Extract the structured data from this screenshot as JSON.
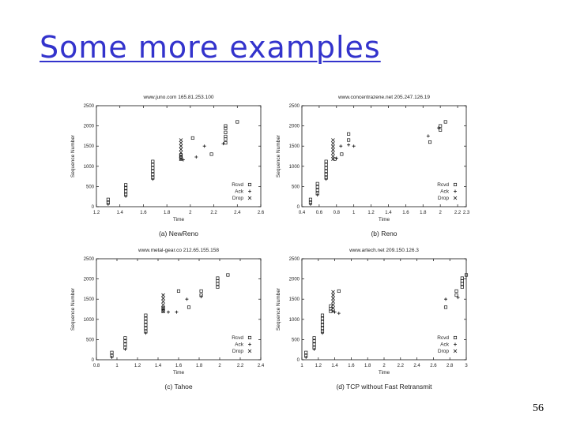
{
  "slide": {
    "title": "Some more examples",
    "page_number": "56"
  },
  "chart_data": [
    {
      "type": "scatter",
      "title": "www.juno.com 165.81.253.100",
      "xlabel": "Time",
      "ylabel": "Sequence Number",
      "caption": "(a) NewReno",
      "xlim": [
        1.2,
        2.6
      ],
      "ylim": [
        0,
        2500
      ],
      "xticks": [
        "1.2",
        "1.4",
        "1.6",
        "1.8",
        "2",
        "2.2",
        "2.4",
        "2.6"
      ],
      "yticks": [
        "0",
        "500",
        "1000",
        "1500",
        "2000",
        "2500"
      ],
      "legend": {
        "placement": "bottom-right",
        "entries": [
          "Rcvd",
          "Ack",
          "Drop"
        ]
      },
      "series": [
        {
          "name": "Rcvd",
          "points": [
            [
              1.3,
              100
            ],
            [
              1.3,
              180
            ],
            [
              1.45,
              300
            ],
            [
              1.45,
              380
            ],
            [
              1.45,
              460
            ],
            [
              1.45,
              540
            ],
            [
              1.68,
              720
            ],
            [
              1.68,
              800
            ],
            [
              1.68,
              880
            ],
            [
              1.68,
              960
            ],
            [
              1.68,
              1040
            ],
            [
              1.68,
              1120
            ],
            [
              1.92,
              1180
            ],
            [
              1.92,
              1230
            ],
            [
              1.92,
              1280
            ],
            [
              2.02,
              1700
            ],
            [
              2.18,
              1300
            ],
            [
              2.3,
              1580
            ],
            [
              2.3,
              1670
            ],
            [
              2.3,
              1740
            ],
            [
              2.3,
              1840
            ],
            [
              2.3,
              1940
            ],
            [
              2.3,
              2000
            ],
            [
              2.4,
              2100
            ]
          ]
        },
        {
          "name": "Ack",
          "points": [
            [
              1.3,
              60
            ],
            [
              1.45,
              260
            ],
            [
              1.68,
              680
            ],
            [
              1.94,
              1160
            ],
            [
              2.05,
              1230
            ],
            [
              2.12,
              1500
            ],
            [
              2.28,
              1560
            ]
          ]
        },
        {
          "name": "Drop",
          "points": [
            [
              1.92,
              1180
            ],
            [
              1.92,
              1260
            ],
            [
              1.92,
              1340
            ],
            [
              1.92,
              1420
            ],
            [
              1.92,
              1500
            ],
            [
              1.92,
              1580
            ],
            [
              1.92,
              1650
            ]
          ]
        }
      ]
    },
    {
      "type": "scatter",
      "title": "www.concentrazene.net 205.247.126.19",
      "xlabel": "Time",
      "ylabel": "Sequence Number",
      "caption": "(b) Reno",
      "xlim": [
        0.4,
        2.3
      ],
      "ylim": [
        0,
        2500
      ],
      "xticks": [
        "0.4",
        "0.6",
        "0.8",
        "1",
        "1.2",
        "1.4",
        "1.6",
        "1.8",
        "2",
        "2.2",
        "2.3"
      ],
      "yticks": [
        "0",
        "500",
        "1000",
        "1500",
        "2000",
        "2500"
      ],
      "legend": {
        "placement": "bottom-right",
        "entries": [
          "Rcvd",
          "Ack",
          "Drop"
        ]
      },
      "series": [
        {
          "name": "Rcvd",
          "points": [
            [
              0.5,
              100
            ],
            [
              0.5,
              180
            ],
            [
              0.58,
              330
            ],
            [
              0.58,
              410
            ],
            [
              0.58,
              490
            ],
            [
              0.58,
              570
            ],
            [
              0.68,
              720
            ],
            [
              0.68,
              800
            ],
            [
              0.68,
              880
            ],
            [
              0.68,
              960
            ],
            [
              0.68,
              1040
            ],
            [
              0.68,
              1120
            ],
            [
              0.78,
              1180
            ],
            [
              0.86,
              1300
            ],
            [
              0.94,
              1650
            ],
            [
              0.94,
              1800
            ],
            [
              1.88,
              1600
            ],
            [
              2.0,
              1900
            ],
            [
              2.0,
              2000
            ],
            [
              2.06,
              2100
            ]
          ]
        },
        {
          "name": "Ack",
          "points": [
            [
              0.5,
              60
            ],
            [
              0.58,
              290
            ],
            [
              0.68,
              680
            ],
            [
              0.8,
              1200
            ],
            [
              0.85,
              1500
            ],
            [
              0.94,
              1530
            ],
            [
              1.0,
              1500
            ],
            [
              1.86,
              1750
            ],
            [
              1.98,
              1950
            ]
          ]
        },
        {
          "name": "Drop",
          "points": [
            [
              0.76,
              1180
            ],
            [
              0.76,
              1250
            ],
            [
              0.76,
              1330
            ],
            [
              0.76,
              1410
            ],
            [
              0.76,
              1490
            ],
            [
              0.76,
              1570
            ],
            [
              0.76,
              1650
            ]
          ]
        }
      ]
    },
    {
      "type": "scatter",
      "title": "www.metal-gear.co 212.65.155.158",
      "xlabel": "Time",
      "ylabel": "Sequence Number",
      "caption": "(c) Tahoe",
      "xlim": [
        0.8,
        2.4
      ],
      "ylim": [
        0,
        2500
      ],
      "xticks": [
        "0.8",
        "1",
        "1.2",
        "1.4",
        "1.6",
        "1.8",
        "2",
        "2.2",
        "2.4"
      ],
      "yticks": [
        "0",
        "500",
        "1000",
        "1500",
        "2000",
        "2500"
      ],
      "legend": {
        "placement": "bottom-right",
        "entries": [
          "Rcvd",
          "Ack",
          "Drop"
        ]
      },
      "series": [
        {
          "name": "Rcvd",
          "points": [
            [
              0.95,
              100
            ],
            [
              0.95,
              180
            ],
            [
              1.08,
              300
            ],
            [
              1.08,
              380
            ],
            [
              1.08,
              460
            ],
            [
              1.08,
              540
            ],
            [
              1.28,
              700
            ],
            [
              1.28,
              780
            ],
            [
              1.28,
              860
            ],
            [
              1.28,
              940
            ],
            [
              1.28,
              1020
            ],
            [
              1.28,
              1100
            ],
            [
              1.45,
              1200
            ],
            [
              1.45,
              1280
            ],
            [
              1.6,
              1700
            ],
            [
              1.7,
              1300
            ],
            [
              1.82,
              1600
            ],
            [
              1.82,
              1700
            ],
            [
              1.98,
              1800
            ],
            [
              1.98,
              1880
            ],
            [
              1.98,
              1950
            ],
            [
              1.98,
              2020
            ],
            [
              2.08,
              2100
            ]
          ]
        },
        {
          "name": "Ack",
          "points": [
            [
              0.95,
              60
            ],
            [
              1.08,
              260
            ],
            [
              1.28,
              660
            ],
            [
              1.5,
              1180
            ],
            [
              1.58,
              1180
            ],
            [
              1.68,
              1500
            ],
            [
              1.82,
              1560
            ]
          ]
        },
        {
          "name": "Drop",
          "points": [
            [
              1.45,
              1200
            ],
            [
              1.45,
              1280
            ],
            [
              1.45,
              1360
            ],
            [
              1.45,
              1440
            ],
            [
              1.45,
              1520
            ],
            [
              1.45,
              1600
            ]
          ]
        }
      ]
    },
    {
      "type": "scatter",
      "title": "www.artech.net 209.150.126.3",
      "xlabel": "Time",
      "ylabel": "Sequence Number",
      "caption": "(d) TCP without Fast Retransmit",
      "xlim": [
        1.0,
        3.0
      ],
      "ylim": [
        0,
        2500
      ],
      "xticks": [
        "1",
        "1.2",
        "1.4",
        "1.6",
        "1.8",
        "2",
        "2.2",
        "2.4",
        "2.6",
        "2.8",
        "3"
      ],
      "yticks": [
        "0",
        "500",
        "1000",
        "1500",
        "2000",
        "2500"
      ],
      "legend": {
        "placement": "bottom-right",
        "entries": [
          "Rcvd",
          "Ack",
          "Drop"
        ]
      },
      "series": [
        {
          "name": "Rcvd",
          "points": [
            [
              1.05,
              100
            ],
            [
              1.05,
              180
            ],
            [
              1.15,
              300
            ],
            [
              1.15,
              380
            ],
            [
              1.15,
              460
            ],
            [
              1.15,
              540
            ],
            [
              1.25,
              700
            ],
            [
              1.25,
              780
            ],
            [
              1.25,
              860
            ],
            [
              1.25,
              940
            ],
            [
              1.25,
              1020
            ],
            [
              1.25,
              1100
            ],
            [
              1.35,
              1200
            ],
            [
              1.35,
              1260
            ],
            [
              1.35,
              1330
            ],
            [
              1.45,
              1700
            ],
            [
              2.75,
              1300
            ],
            [
              2.88,
              1600
            ],
            [
              2.88,
              1700
            ],
            [
              2.95,
              1800
            ],
            [
              2.95,
              1880
            ],
            [
              2.95,
              1950
            ],
            [
              2.95,
              2020
            ],
            [
              3.0,
              2100
            ]
          ]
        },
        {
          "name": "Ack",
          "points": [
            [
              1.05,
              60
            ],
            [
              1.15,
              260
            ],
            [
              1.25,
              660
            ],
            [
              1.4,
              1180
            ],
            [
              1.45,
              1150
            ],
            [
              2.75,
              1500
            ],
            [
              2.9,
              1540
            ]
          ]
        },
        {
          "name": "Drop",
          "points": [
            [
              1.38,
              1200
            ],
            [
              1.38,
              1280
            ],
            [
              1.38,
              1360
            ],
            [
              1.38,
              1440
            ],
            [
              1.38,
              1520
            ],
            [
              1.38,
              1600
            ],
            [
              1.38,
              1680
            ]
          ]
        }
      ]
    }
  ]
}
